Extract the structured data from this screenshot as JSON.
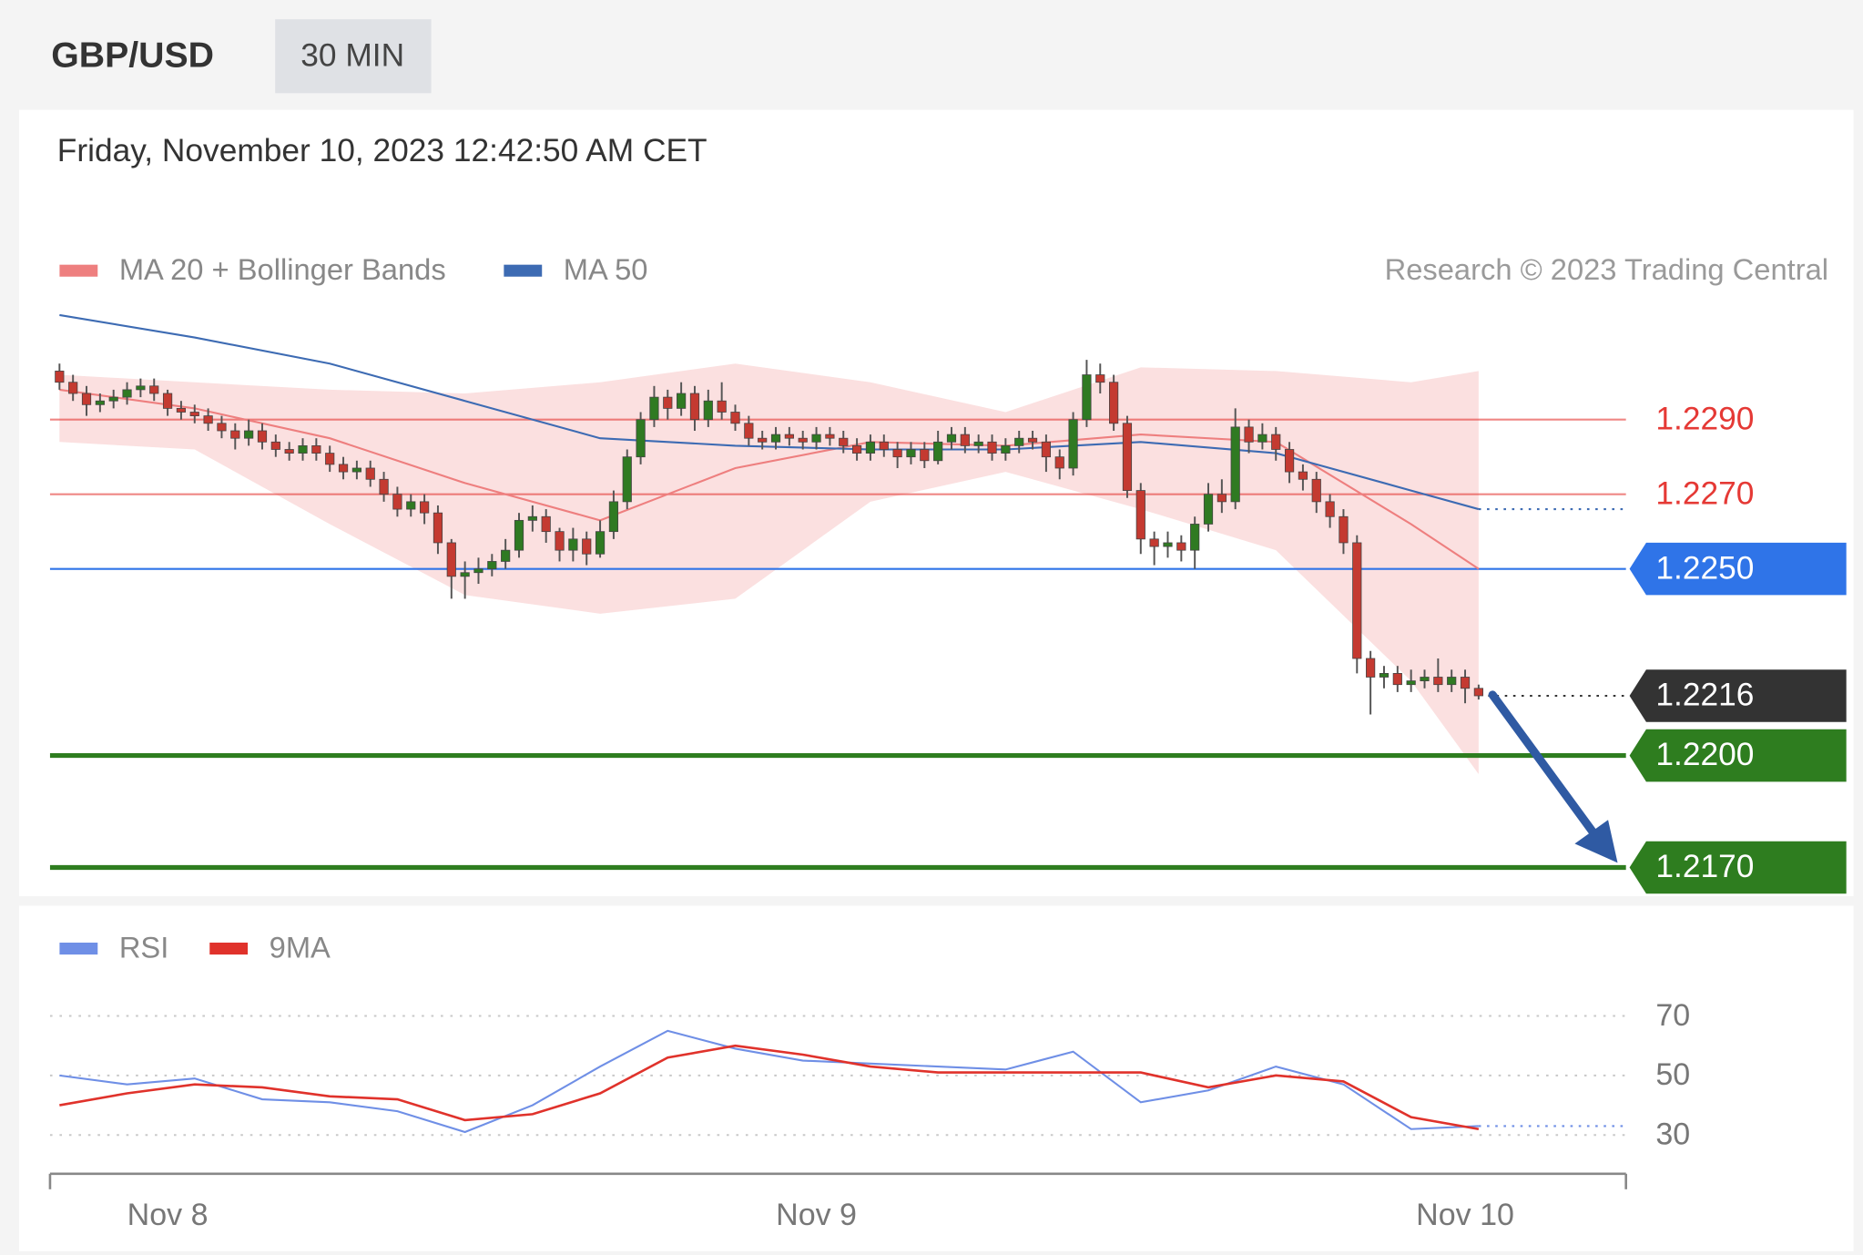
{
  "chart_data": [
    {
      "type": "candlestick",
      "title": "GBP/USD",
      "timeframe": "30 MIN",
      "subtitle": "Friday, November 10, 2023 12:42:50 AM CET",
      "credit": "Research © 2023 Trading Central",
      "xlim": [
        -0.7,
        115.9
      ],
      "ylim": [
        1.2162,
        1.232
      ],
      "up_color": "#2f7a22",
      "down_color": "#c43a31",
      "x": [
        0,
        1,
        2,
        3,
        4,
        5,
        6,
        7,
        8,
        9,
        10,
        11,
        12,
        13,
        14,
        15,
        16,
        17,
        18,
        19,
        20,
        21,
        22,
        23,
        24,
        25,
        26,
        27,
        28,
        29,
        30,
        31,
        32,
        33,
        34,
        35,
        36,
        37,
        38,
        39,
        40,
        41,
        42,
        43,
        44,
        45,
        46,
        47,
        48,
        49,
        50,
        51,
        52,
        53,
        54,
        55,
        56,
        57,
        58,
        59,
        60,
        61,
        62,
        63,
        64,
        65,
        66,
        67,
        68,
        69,
        70,
        71,
        72,
        73,
        74,
        75,
        76,
        77,
        78,
        79,
        80,
        81,
        82,
        83,
        84,
        85,
        86,
        87,
        88,
        89,
        90,
        91,
        92,
        93,
        94,
        95,
        96,
        97,
        98,
        99,
        100,
        101,
        102,
        103,
        104,
        105
      ],
      "open": [
        1.2303,
        1.23,
        1.2297,
        1.2294,
        1.2295,
        1.2296,
        1.2298,
        1.2299,
        1.2297,
        1.2293,
        1.2292,
        1.2291,
        1.2289,
        1.2287,
        1.2285,
        1.2287,
        1.2284,
        1.2282,
        1.2281,
        1.2283,
        1.2281,
        1.2278,
        1.2276,
        1.2277,
        1.2274,
        1.227,
        1.2266,
        1.2268,
        1.2265,
        1.2257,
        1.2248,
        1.2249,
        1.225,
        1.2252,
        1.2255,
        1.2263,
        1.2264,
        1.226,
        1.2255,
        1.2258,
        1.2254,
        1.226,
        1.2268,
        1.228,
        1.229,
        1.2296,
        1.2293,
        1.2297,
        1.229,
        1.2295,
        1.2292,
        1.2289,
        1.2285,
        1.2284,
        1.2286,
        1.2285,
        1.2284,
        1.2286,
        1.2285,
        1.2283,
        1.2281,
        1.2284,
        1.2282,
        1.228,
        1.2282,
        1.2279,
        1.2284,
        1.2286,
        1.2283,
        1.2284,
        1.2281,
        1.2283,
        1.2285,
        1.2284,
        1.228,
        1.2277,
        1.229,
        1.2302,
        1.23,
        1.2289,
        1.2271,
        1.2258,
        1.2256,
        1.2257,
        1.2255,
        1.2262,
        1.227,
        1.2268,
        1.2288,
        1.2284,
        1.2286,
        1.2282,
        1.2276,
        1.2274,
        1.2268,
        1.2264,
        1.2257,
        1.2226,
        1.2221,
        1.2222,
        1.2219,
        1.222,
        1.2221,
        1.2219,
        1.2221,
        1.2218
      ],
      "high": [
        1.2305,
        1.2302,
        1.2299,
        1.2297,
        1.2298,
        1.23,
        1.2301,
        1.2301,
        1.2298,
        1.2295,
        1.2294,
        1.2293,
        1.2291,
        1.2289,
        1.229,
        1.2289,
        1.2286,
        1.2284,
        1.2285,
        1.2285,
        1.2283,
        1.228,
        1.2279,
        1.2279,
        1.2276,
        1.2272,
        1.227,
        1.227,
        1.2267,
        1.2258,
        1.2252,
        1.2253,
        1.2254,
        1.2258,
        1.2265,
        1.2267,
        1.2266,
        1.2261,
        1.2261,
        1.226,
        1.2263,
        1.2271,
        1.2282,
        1.2292,
        1.2299,
        1.2298,
        1.23,
        1.2299,
        1.2298,
        1.23,
        1.2294,
        1.2291,
        1.2287,
        1.2288,
        1.2288,
        1.2287,
        1.2288,
        1.2288,
        1.2287,
        1.2285,
        1.2286,
        1.2286,
        1.2284,
        1.2284,
        1.2284,
        1.2287,
        1.2288,
        1.2288,
        1.2286,
        1.2286,
        1.2285,
        1.2287,
        1.2287,
        1.2286,
        1.2282,
        1.2292,
        1.2306,
        1.2305,
        1.2302,
        1.2291,
        1.2273,
        1.226,
        1.226,
        1.2259,
        1.2264,
        1.2273,
        1.2274,
        1.2293,
        1.229,
        1.2289,
        1.2288,
        1.2284,
        1.2278,
        1.2276,
        1.227,
        1.2266,
        1.2259,
        1.2228,
        1.2224,
        1.2224,
        1.2223,
        1.2223,
        1.2226,
        1.2223,
        1.2223,
        1.2219
      ],
      "low": [
        1.2298,
        1.2295,
        1.2291,
        1.2292,
        1.2293,
        1.2294,
        1.2296,
        1.2295,
        1.2291,
        1.229,
        1.2289,
        1.2287,
        1.2285,
        1.2282,
        1.2283,
        1.2282,
        1.228,
        1.2279,
        1.2279,
        1.2279,
        1.2276,
        1.2274,
        1.2274,
        1.2272,
        1.2268,
        1.2264,
        1.2264,
        1.2262,
        1.2254,
        1.2242,
        1.2242,
        1.2246,
        1.2248,
        1.225,
        1.2253,
        1.226,
        1.2257,
        1.2252,
        1.2252,
        1.2251,
        1.2253,
        1.2258,
        1.2266,
        1.2278,
        1.2288,
        1.229,
        1.2291,
        1.2287,
        1.2288,
        1.229,
        1.2287,
        1.2283,
        1.2282,
        1.2282,
        1.2283,
        1.2282,
        1.2282,
        1.2283,
        1.2281,
        1.2279,
        1.2279,
        1.228,
        1.2277,
        1.2278,
        1.2277,
        1.2278,
        1.2282,
        1.2281,
        1.2281,
        1.2279,
        1.2279,
        1.2281,
        1.2282,
        1.2276,
        1.2274,
        1.2275,
        1.2288,
        1.2297,
        1.2287,
        1.2269,
        1.2254,
        1.2251,
        1.2253,
        1.2252,
        1.225,
        1.226,
        1.2265,
        1.2266,
        1.2281,
        1.2282,
        1.2279,
        1.2273,
        1.2271,
        1.2265,
        1.2261,
        1.2254,
        1.2222,
        1.2211,
        1.2218,
        1.2217,
        1.2217,
        1.2218,
        1.2217,
        1.2217,
        1.2214,
        1.2215
      ],
      "close": [
        1.23,
        1.2297,
        1.2294,
        1.2295,
        1.2296,
        1.2298,
        1.2299,
        1.2297,
        1.2293,
        1.2292,
        1.2291,
        1.2289,
        1.2287,
        1.2285,
        1.2287,
        1.2284,
        1.2282,
        1.2281,
        1.2283,
        1.2281,
        1.2278,
        1.2276,
        1.2277,
        1.2274,
        1.227,
        1.2266,
        1.2268,
        1.2265,
        1.2257,
        1.2248,
        1.2249,
        1.225,
        1.2252,
        1.2255,
        1.2263,
        1.2264,
        1.226,
        1.2255,
        1.2258,
        1.2254,
        1.226,
        1.2268,
        1.228,
        1.229,
        1.2296,
        1.2293,
        1.2297,
        1.229,
        1.2295,
        1.2292,
        1.2289,
        1.2285,
        1.2284,
        1.2286,
        1.2285,
        1.2284,
        1.2286,
        1.2285,
        1.2283,
        1.2281,
        1.2284,
        1.2282,
        1.228,
        1.2282,
        1.2279,
        1.2284,
        1.2286,
        1.2283,
        1.2284,
        1.2281,
        1.2283,
        1.2285,
        1.2284,
        1.228,
        1.2277,
        1.229,
        1.2302,
        1.23,
        1.2289,
        1.2271,
        1.2258,
        1.2256,
        1.2257,
        1.2255,
        1.2262,
        1.227,
        1.2268,
        1.2288,
        1.2284,
        1.2286,
        1.2282,
        1.2276,
        1.2274,
        1.2268,
        1.2264,
        1.2257,
        1.2226,
        1.2221,
        1.2222,
        1.2219,
        1.222,
        1.2221,
        1.2219,
        1.2221,
        1.2218,
        1.2216
      ],
      "series": [
        {
          "name": "MA 20 + Bollinger Bands",
          "color": "#ee7f7f",
          "band_color": "#fbe0e0",
          "x": [
            0,
            10,
            20,
            30,
            40,
            50,
            60,
            70,
            80,
            90,
            100,
            105
          ],
          "values": [
            1.2298,
            1.2293,
            1.2285,
            1.2273,
            1.2263,
            1.2277,
            1.2284,
            1.2283,
            1.2286,
            1.2284,
            1.2262,
            1.225
          ],
          "upper": [
            1.2302,
            1.23,
            1.2298,
            1.2297,
            1.23,
            1.2305,
            1.23,
            1.2292,
            1.2304,
            1.2303,
            1.23,
            1.2303
          ],
          "lower": [
            1.2284,
            1.2282,
            1.2262,
            1.2243,
            1.2238,
            1.2242,
            1.2268,
            1.2276,
            1.2266,
            1.2255,
            1.222,
            1.2195
          ]
        },
        {
          "name": "MA 50",
          "color": "#3d6bb3",
          "x": [
            0,
            10,
            20,
            30,
            40,
            50,
            60,
            70,
            80,
            90,
            100,
            105
          ],
          "values": [
            1.2318,
            1.2312,
            1.2305,
            1.2295,
            1.2285,
            1.2283,
            1.2282,
            1.2282,
            1.2284,
            1.2281,
            1.2271,
            1.2266
          ]
        }
      ],
      "levels": [
        {
          "value": 1.229,
          "label": "1.2290",
          "color": "#e53935",
          "style": "thin",
          "tag": false
        },
        {
          "value": 1.227,
          "label": "1.2270",
          "color": "#e53935",
          "style": "thin",
          "tag": false
        },
        {
          "value": 1.225,
          "label": "1.2250",
          "color": "#2f74e8",
          "style": "thin",
          "tag": true
        },
        {
          "value": 1.2216,
          "label": "1.2216",
          "color": "#333333",
          "style": "dotted",
          "tag": true
        },
        {
          "value": 1.22,
          "label": "1.2200",
          "color": "#2e7d1f",
          "style": "thick",
          "tag": true
        },
        {
          "value": 1.217,
          "label": "1.2170",
          "color": "#2e7d1f",
          "style": "thick",
          "tag": true
        }
      ]
    },
    {
      "type": "line",
      "xlim": [
        -0.7,
        115.9
      ],
      "ylim": [
        17,
        81
      ],
      "yticks": [
        30,
        50,
        70
      ],
      "grid": true,
      "xticks": [
        {
          "value": 8,
          "label": "Nov 8"
        },
        {
          "value": 56,
          "label": "Nov 9"
        },
        {
          "value": 104,
          "label": "Nov 10"
        }
      ],
      "x": [
        0,
        5,
        10,
        15,
        20,
        25,
        30,
        35,
        40,
        45,
        50,
        55,
        60,
        65,
        70,
        75,
        80,
        85,
        90,
        95,
        100,
        105
      ],
      "series": [
        {
          "name": "RSI",
          "color": "#6f8fe6",
          "values": [
            50,
            47,
            49,
            42,
            41,
            38,
            31,
            40,
            53,
            65,
            59,
            55,
            54,
            53,
            52,
            58,
            41,
            45,
            53,
            47,
            32,
            33
          ]
        },
        {
          "name": "9MA",
          "color": "#e0322b",
          "values": [
            40,
            44,
            47,
            46,
            43,
            42,
            35,
            37,
            44,
            56,
            60,
            57,
            53,
            51,
            51,
            51,
            51,
            46,
            50,
            48,
            36,
            32
          ]
        }
      ]
    }
  ]
}
